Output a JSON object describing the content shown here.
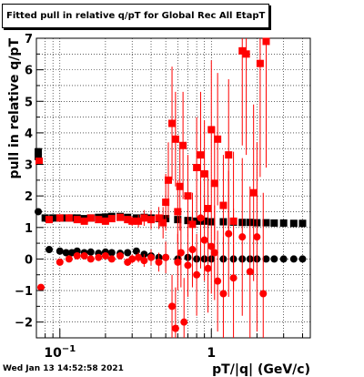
{
  "chart_data": {
    "type": "scatter",
    "title": "Fitted pull in relative q/pT for Global Rec All EtapT",
    "xlabel": "pT/|q| (GeV/c)",
    "ylabel": "pull in relative q/pT",
    "xscale": "log",
    "xlim": [
      0.07,
      4.5
    ],
    "ylim": [
      -2.5,
      7
    ],
    "grid": true,
    "x_tick_labels": [
      {
        "x": 0.1,
        "base": "10",
        "exp": "−1"
      },
      {
        "x": 1,
        "base": "1",
        "exp": ""
      }
    ],
    "y_ticks": [
      -2,
      -1,
      0,
      1,
      2,
      3,
      4,
      5,
      6,
      7
    ],
    "series": [
      {
        "color": "#000000",
        "marker": "square",
        "x": [
          0.072,
          0.072,
          0.08,
          0.09,
          0.1,
          0.11,
          0.12,
          0.13,
          0.145,
          0.16,
          0.18,
          0.2,
          0.22,
          0.25,
          0.28,
          0.32,
          0.36,
          0.4,
          0.45,
          0.5,
          0.6,
          0.7,
          0.8,
          0.9,
          1.0,
          1.2,
          1.4,
          1.6,
          1.8,
          2.0,
          2.3,
          2.6,
          3.0,
          3.5,
          4.0
        ],
        "y": [
          3.4,
          3.25,
          1.3,
          1.3,
          1.3,
          1.3,
          1.3,
          1.3,
          1.28,
          1.3,
          1.32,
          1.33,
          1.35,
          1.35,
          1.32,
          1.3,
          1.32,
          1.3,
          1.28,
          1.28,
          1.25,
          1.22,
          1.2,
          1.2,
          1.18,
          1.18,
          1.17,
          1.16,
          1.16,
          1.15,
          1.15,
          1.14,
          1.14,
          1.13,
          1.13
        ],
        "yerr": [
          0.05,
          0.05,
          0.04,
          0.04,
          0.04,
          0.04,
          0.04,
          0.04,
          0.04,
          0.04,
          0.04,
          0.04,
          0.05,
          0.05,
          0.05,
          0.06,
          0.06,
          0.07,
          0.08,
          0.09,
          0.08,
          0.07,
          0.06,
          0.05,
          0.05,
          0.05,
          0.05,
          0.05,
          0.05,
          0.05,
          0.05,
          0.05,
          0.05,
          0.05,
          0.05
        ]
      },
      {
        "color": "#000000",
        "marker": "circle",
        "x": [
          0.072,
          0.085,
          0.1,
          0.11,
          0.12,
          0.13,
          0.145,
          0.16,
          0.18,
          0.2,
          0.22,
          0.25,
          0.28,
          0.32,
          0.36,
          0.4,
          0.45,
          0.5,
          0.6,
          0.7,
          0.8,
          0.9,
          1.0,
          1.2,
          1.4,
          1.6,
          1.8,
          2.0,
          2.3,
          2.6,
          3.0,
          3.5,
          4.0
        ],
        "y": [
          1.5,
          0.3,
          0.25,
          0.2,
          0.2,
          0.25,
          0.2,
          0.22,
          0.18,
          0.22,
          0.2,
          0.18,
          0.2,
          0.25,
          0.15,
          0.1,
          0.05,
          0.05,
          0.0,
          0.05,
          0.0,
          0.0,
          0.0,
          0.0,
          0.0,
          0.0,
          0.0,
          0.0,
          0.0,
          0.0,
          0.0,
          0.0,
          0.0
        ],
        "yerr": [
          0.05,
          0.05,
          0.05,
          0.05,
          0.05,
          0.05,
          0.05,
          0.05,
          0.05,
          0.05,
          0.05,
          0.05,
          0.05,
          0.06,
          0.06,
          0.08,
          0.08,
          0.09,
          0.09,
          0.08,
          0.07,
          0.06,
          0.06,
          0.06,
          0.06,
          0.06,
          0.06,
          0.06,
          0.06,
          0.06,
          0.06,
          0.06,
          0.06
        ]
      },
      {
        "color": "#ff0000",
        "marker": "square",
        "x": [
          0.073,
          0.085,
          0.1,
          0.115,
          0.13,
          0.145,
          0.16,
          0.18,
          0.2,
          0.22,
          0.25,
          0.28,
          0.3,
          0.33,
          0.36,
          0.4,
          0.45,
          0.48,
          0.5,
          0.52,
          0.55,
          0.58,
          0.6,
          0.62,
          0.65,
          0.7,
          0.75,
          0.8,
          0.85,
          0.9,
          0.95,
          1.0,
          1.05,
          1.1,
          1.2,
          1.3,
          1.4,
          1.6,
          1.7,
          1.9,
          2.1,
          2.3
        ],
        "y": [
          3.1,
          1.25,
          1.3,
          1.3,
          1.25,
          1.2,
          1.3,
          1.25,
          1.2,
          1.28,
          1.32,
          1.25,
          1.2,
          1.2,
          1.3,
          1.25,
          1.3,
          1.15,
          1.8,
          2.5,
          4.3,
          3.8,
          1.5,
          2.3,
          3.6,
          2.0,
          1.1,
          2.9,
          3.3,
          2.7,
          1.6,
          4.1,
          2.4,
          3.8,
          1.7,
          3.3,
          1.2,
          6.6,
          6.5,
          2.1,
          6.2,
          6.9
        ],
        "yerr": [
          0.08,
          0.08,
          0.06,
          0.06,
          0.06,
          0.06,
          0.06,
          0.08,
          0.1,
          0.1,
          0.1,
          0.12,
          0.15,
          0.2,
          0.25,
          0.3,
          0.35,
          0.5,
          0.9,
          1.2,
          1.8,
          1.5,
          1.0,
          1.4,
          1.7,
          1.3,
          1.0,
          1.6,
          2.0,
          1.7,
          1.2,
          2.2,
          1.8,
          2.1,
          1.6,
          2.4,
          2.2,
          3.0,
          3.2,
          2.8,
          3.6,
          4.0
        ]
      },
      {
        "color": "#ff0000",
        "marker": "circle",
        "x": [
          0.075,
          0.1,
          0.115,
          0.13,
          0.145,
          0.16,
          0.18,
          0.2,
          0.22,
          0.25,
          0.28,
          0.3,
          0.33,
          0.36,
          0.4,
          0.45,
          0.5,
          0.55,
          0.58,
          0.6,
          0.63,
          0.66,
          0.7,
          0.75,
          0.8,
          0.85,
          0.9,
          0.95,
          1.0,
          1.05,
          1.1,
          1.2,
          1.3,
          1.4,
          1.6,
          1.8,
          2.0,
          2.2
        ],
        "y": [
          -0.9,
          -0.1,
          0.0,
          0.1,
          0.1,
          0.0,
          0.05,
          0.1,
          0.0,
          0.1,
          -0.1,
          0.0,
          0.05,
          -0.05,
          0.05,
          -0.1,
          0.05,
          -1.5,
          -2.2,
          -0.1,
          0.2,
          -2.0,
          -0.2,
          0.3,
          -0.5,
          1.3,
          0.6,
          -0.3,
          0.4,
          0.2,
          -0.7,
          -1.1,
          0.8,
          -0.6,
          0.7,
          -0.4,
          0.7,
          -1.1
        ],
        "yerr": [
          0.1,
          0.06,
          0.06,
          0.06,
          0.06,
          0.06,
          0.08,
          0.1,
          0.1,
          0.1,
          0.12,
          0.14,
          0.16,
          0.2,
          0.25,
          0.3,
          0.5,
          1.0,
          1.3,
          0.9,
          1.1,
          1.4,
          1.0,
          1.2,
          1.3,
          1.6,
          1.3,
          1.4,
          1.5,
          1.5,
          1.6,
          1.8,
          2.0,
          2.2,
          2.5,
          2.7,
          3.0,
          3.2
        ]
      }
    ]
  },
  "footer": {
    "date": "Wed Jan 13 14:52:58 2021"
  }
}
